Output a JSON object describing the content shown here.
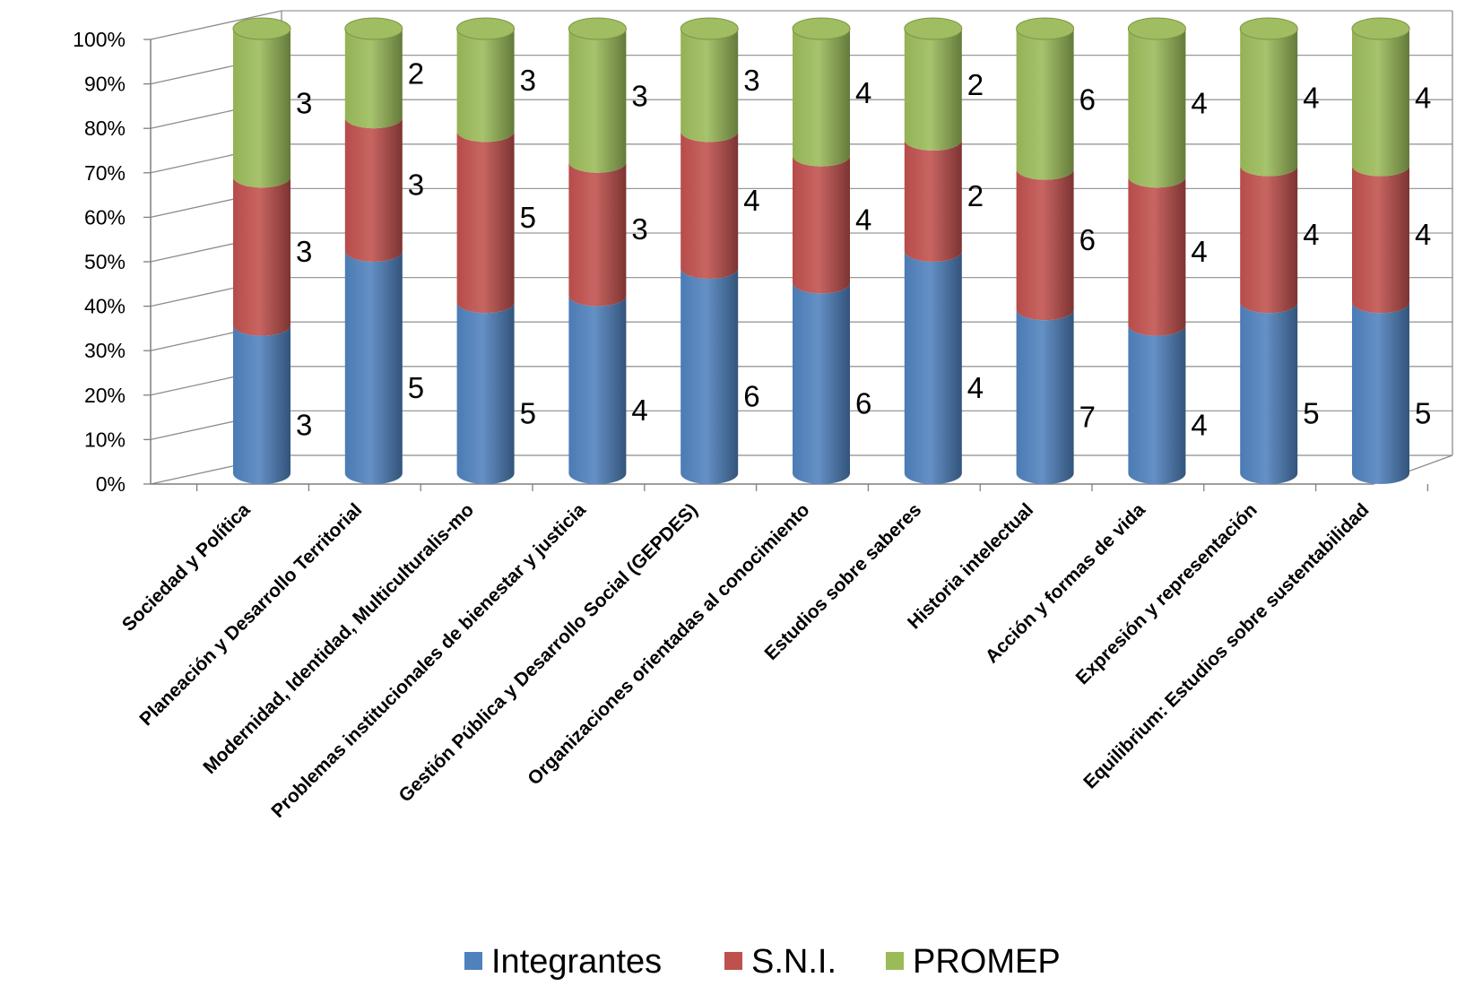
{
  "chart_data": {
    "type": "bar",
    "stacked": "percent",
    "style": "3d-cylinder",
    "categories": [
      "Sociedad y Política",
      "Planeación y Desarrollo Territorial",
      "Modernidad, Identidad, Multiculturalis-mo",
      "Problemas institucionales de bienestar y justicia",
      "Gestión Pública y Desarrollo Social (GEPDES)",
      "Organizaciones orientadas al conocimiento",
      "Estudios sobre saberes",
      "Historia intelectual",
      "Acción y formas de vida",
      "Expresión y representación",
      "Equilibrium: Estudios sobre sustentabilidad"
    ],
    "series": [
      {
        "name": "Integrantes",
        "color": "#4F81BD",
        "values": [
          3,
          5,
          5,
          4,
          6,
          6,
          4,
          7,
          4,
          5,
          5
        ]
      },
      {
        "name": "S.N.I.",
        "color": "#C0504D",
        "values": [
          3,
          3,
          5,
          3,
          4,
          4,
          2,
          6,
          4,
          4,
          4
        ]
      },
      {
        "name": "PROMEP",
        "color": "#9BBB59",
        "values": [
          3,
          2,
          3,
          3,
          3,
          4,
          2,
          6,
          4,
          4,
          4
        ]
      }
    ],
    "yticks": [
      "0%",
      "10%",
      "20%",
      "30%",
      "40%",
      "50%",
      "60%",
      "70%",
      "80%",
      "90%",
      "100%"
    ],
    "ylim": [
      0,
      100
    ],
    "grid": true,
    "legend_position": "bottom"
  }
}
